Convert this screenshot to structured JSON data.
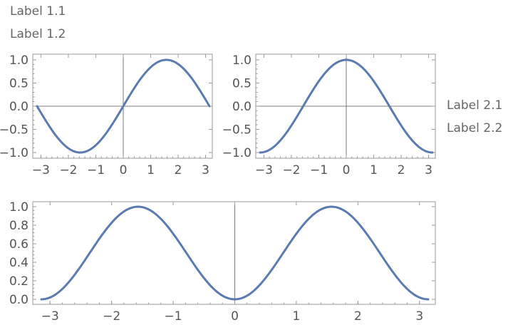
{
  "labels": {
    "top": [
      "Label 1.1",
      "Label 1.2"
    ],
    "right": [
      "Label 2.1",
      "Label 2.2"
    ]
  },
  "colors": {
    "curve": "#5b7bb0"
  },
  "chart_data": [
    {
      "type": "line",
      "title": "",
      "xlabel": "",
      "ylabel": "",
      "function": "sin(x)",
      "xlim": [
        -3.14159,
        3.14159
      ],
      "ylim": [
        -1.0,
        1.0
      ],
      "xticks": [
        -3,
        -2,
        -1,
        0,
        1,
        2,
        3
      ],
      "xticklabels": [
        "−3",
        "−2",
        "−1",
        "0",
        "1",
        "2",
        "3"
      ],
      "yticks": [
        1.0,
        0.5,
        0.0,
        -0.5,
        -1.0
      ],
      "yticklabels": [
        "1.0",
        "0.5",
        "0.0",
        "−0.5",
        "−1.0"
      ],
      "series": [
        {
          "x": [
            -3.14159,
            -2.61799,
            -2.0944,
            -1.5708,
            -1.0472,
            -0.5236,
            0,
            0.5236,
            1.0472,
            1.5708,
            2.0944,
            2.61799,
            3.14159
          ],
          "y": [
            0,
            -0.5,
            -0.866,
            -1.0,
            -0.866,
            -0.5,
            0,
            0.5,
            0.866,
            1.0,
            0.866,
            0.5,
            0
          ]
        }
      ]
    },
    {
      "type": "line",
      "title": "",
      "xlabel": "",
      "ylabel": "",
      "function": "cos(x)",
      "xlim": [
        -3.14159,
        3.14159
      ],
      "ylim": [
        -1.0,
        1.0
      ],
      "xticks": [
        -3,
        -2,
        -1,
        0,
        1,
        2,
        3
      ],
      "xticklabels": [
        "−3",
        "−2",
        "−1",
        "0",
        "1",
        "2",
        "3"
      ],
      "yticks": [
        1.0,
        0.5,
        0.0,
        -0.5,
        -1.0
      ],
      "yticklabels": [
        "1.0",
        "0.5",
        "0.0",
        "−0.5",
        "−1.0"
      ],
      "series": [
        {
          "x": [
            -3.14159,
            -2.61799,
            -2.0944,
            -1.5708,
            -1.0472,
            -0.5236,
            0,
            0.5236,
            1.0472,
            1.5708,
            2.0944,
            2.61799,
            3.14159
          ],
          "y": [
            -1.0,
            -0.866,
            -0.5,
            0,
            0.5,
            0.866,
            1.0,
            0.866,
            0.5,
            0,
            -0.5,
            -0.866,
            -1.0
          ]
        }
      ]
    },
    {
      "type": "line",
      "title": "",
      "xlabel": "",
      "ylabel": "",
      "function": "sin(x)^2",
      "xlim": [
        -3.14159,
        3.14159
      ],
      "ylim": [
        0.0,
        1.0
      ],
      "xticks": [
        -3,
        -2,
        -1,
        0,
        1,
        2,
        3
      ],
      "xticklabels": [
        "−3",
        "−2",
        "−1",
        "0",
        "1",
        "2",
        "3"
      ],
      "yticks": [
        1.0,
        0.8,
        0.6,
        0.4,
        0.2,
        0.0
      ],
      "yticklabels": [
        "1.0",
        "0.8",
        "0.6",
        "0.4",
        "0.2",
        "0.0"
      ],
      "series": [
        {
          "x": [
            -3.14159,
            -2.61799,
            -2.0944,
            -1.5708,
            -1.0472,
            -0.5236,
            0,
            0.5236,
            1.0472,
            1.5708,
            2.0944,
            2.61799,
            3.14159
          ],
          "y": [
            0,
            0.25,
            0.75,
            1.0,
            0.75,
            0.25,
            0,
            0.25,
            0.75,
            1.0,
            0.75,
            0.25,
            0
          ]
        }
      ]
    }
  ]
}
